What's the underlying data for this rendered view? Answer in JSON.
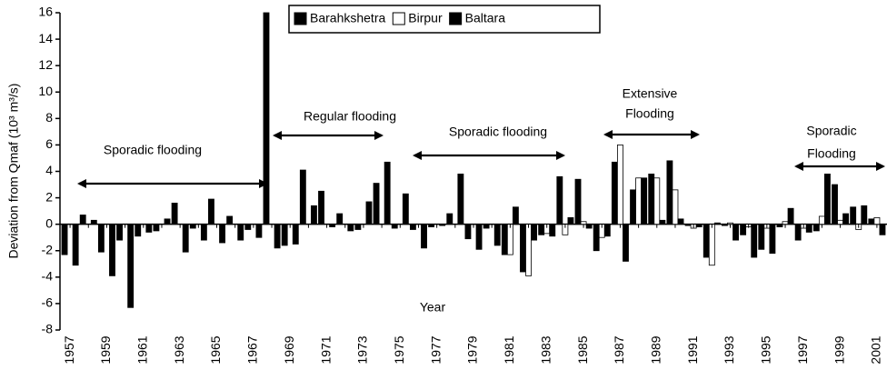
{
  "chart_data": {
    "type": "bar",
    "y_label": "Deviation from Qmaf (10³ m³/s)",
    "x_label": "Year",
    "annotations": [
      "Sporadic flooding",
      "Regular flooding",
      "Sporadic flooding",
      "Extensive",
      "Flooding",
      "Sporadic",
      "Flooding"
    ],
    "categories": [
      "1957",
      null,
      "1959",
      null,
      "1961",
      null,
      "1963",
      null,
      "1965",
      null,
      "1967",
      null,
      "1969",
      null,
      "1971",
      null,
      "1973",
      null,
      "1975",
      null,
      "1977",
      null,
      "1979",
      null,
      "1981",
      null,
      "1983",
      null,
      "1985",
      null,
      "1987",
      null,
      "1989",
      null,
      "1991",
      null,
      "1993",
      null,
      "1995",
      null,
      "1997",
      null,
      "1999",
      null,
      "2001"
    ],
    "series": [
      {
        "name": "Barahkshetra",
        "color": "#000000",
        "values": [
          -2.3,
          0.7,
          -2.1,
          -1.2,
          -0.9,
          -0.5,
          1.6,
          -0.3,
          1.9,
          0.6,
          -0.4,
          16.0,
          -1.6,
          4.1,
          2.5,
          0.8,
          -0.4,
          3.1,
          -0.3,
          -0.4,
          -0.2,
          0.8,
          -1.1,
          -0.3,
          -2.3,
          -3.6,
          -0.8,
          3.6,
          3.4,
          -2.0,
          4.7,
          2.6,
          3.8,
          4.8,
          -0.1,
          -2.5,
          -0.1,
          -0.8,
          -1.9,
          -0.2,
          -1.2,
          -0.5,
          3.0,
          1.3,
          0.4
        ]
      },
      {
        "name": "Birpur",
        "color": "#ffffff",
        "values": [
          null,
          null,
          null,
          null,
          null,
          null,
          null,
          null,
          null,
          null,
          null,
          null,
          null,
          null,
          null,
          null,
          null,
          null,
          null,
          null,
          null,
          null,
          null,
          null,
          -2.3,
          -3.9,
          -0.7,
          -0.8,
          0.2,
          -1.0,
          6.0,
          3.5,
          3.5,
          2.6,
          -0.3,
          -3.1,
          0.1,
          -0.2,
          -0.3,
          0.2,
          -0.3,
          0.6,
          0.3,
          -0.4,
          0.5
        ]
      },
      {
        "name": "Baltara",
        "color": "#000000",
        "values": [
          -3.1,
          0.3,
          -3.9,
          -6.3,
          -0.6,
          0.4,
          -2.1,
          -1.2,
          -1.4,
          -1.2,
          -1.0,
          -1.8,
          -1.5,
          1.4,
          -0.2,
          -0.5,
          1.7,
          4.7,
          2.3,
          -1.8,
          -0.1,
          3.8,
          -1.9,
          -1.6,
          1.3,
          -1.2,
          -0.9,
          0.5,
          -0.3,
          -0.9,
          -2.8,
          3.5,
          0.3,
          0.4,
          -0.2,
          0.1,
          -1.2,
          -2.5,
          -2.2,
          1.2,
          -0.6,
          3.8,
          0.8,
          1.4,
          -0.8
        ]
      }
    ],
    "ylim": [
      -8,
      16
    ],
    "yticks": [
      -8,
      -6,
      -4,
      -2,
      0,
      2,
      4,
      6,
      8,
      10,
      12,
      14,
      16
    ]
  }
}
